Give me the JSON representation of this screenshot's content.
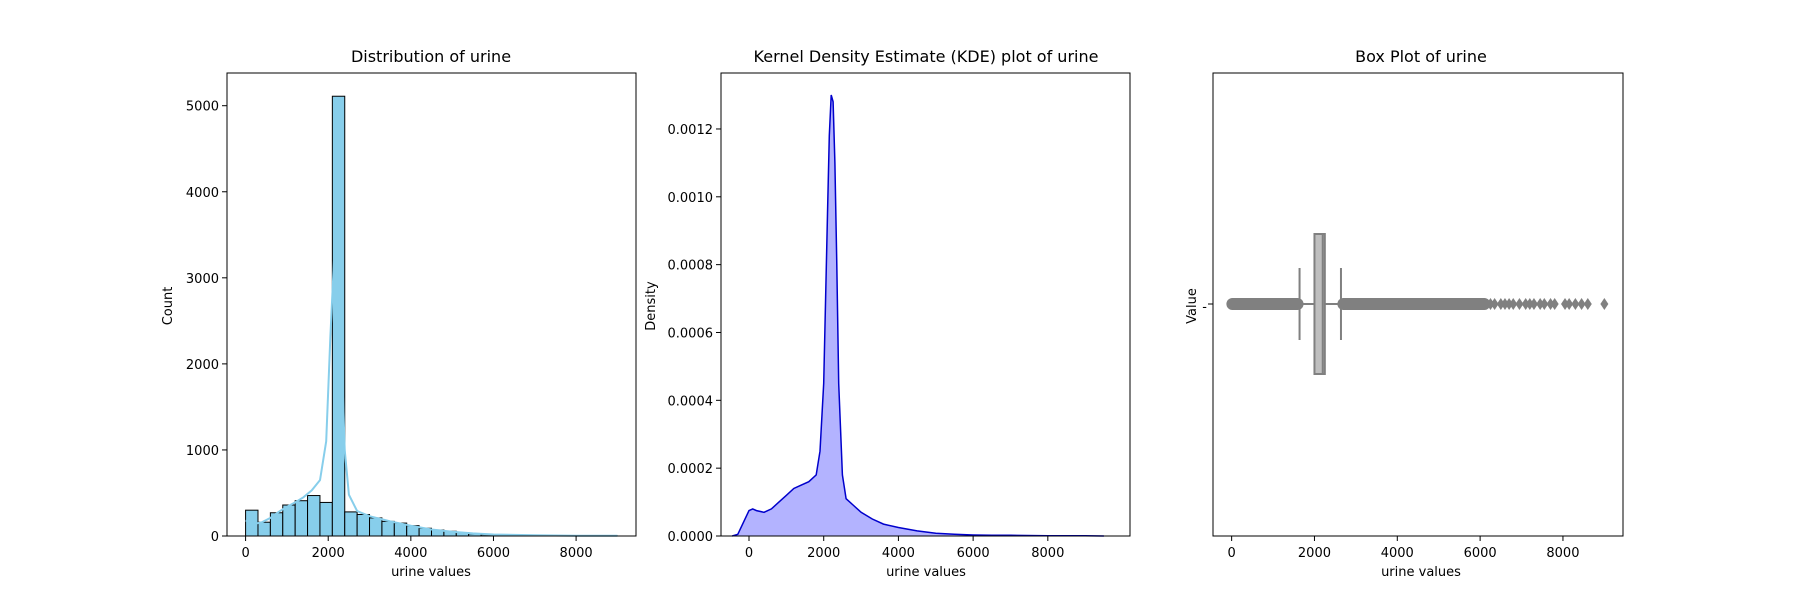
{
  "chart_data": [
    {
      "type": "bar",
      "title": "Distribution of urine",
      "xlabel": "urine values",
      "ylabel": "Count",
      "xlim": [
        -450,
        9450
      ],
      "ylim": [
        0,
        5380
      ],
      "xticks": [
        0,
        2000,
        4000,
        6000,
        8000
      ],
      "yticks": [
        0,
        1000,
        2000,
        3000,
        4000,
        5000
      ],
      "bin_edges": [
        0,
        300,
        600,
        900,
        1200,
        1500,
        1800,
        2100,
        2400,
        2700,
        3000,
        3300,
        3600,
        3900,
        4200,
        4500,
        4800,
        5100,
        5400,
        5700,
        6000,
        6300,
        6600,
        6900,
        7200,
        7500,
        7800,
        8100,
        8400,
        8700,
        9000
      ],
      "values": [
        300,
        160,
        270,
        360,
        410,
        470,
        390,
        5110,
        280,
        250,
        210,
        170,
        150,
        120,
        90,
        70,
        55,
        40,
        25,
        15,
        10,
        8,
        5,
        4,
        3,
        2,
        2,
        1,
        1,
        1
      ],
      "bar_color": "#87ceeb",
      "kde_curve": {
        "color": "#87ceeb",
        "x": [
          0,
          200,
          400,
          600,
          800,
          1000,
          1200,
          1400,
          1600,
          1800,
          1950,
          2050,
          2150,
          2200,
          2250,
          2300,
          2400,
          2500,
          2700,
          3000,
          3500,
          4000,
          4500,
          5000,
          5500,
          6000,
          7000,
          8000,
          9000
        ],
        "y": [
          180,
          140,
          160,
          210,
          280,
          340,
          390,
          450,
          530,
          650,
          1100,
          2300,
          3300,
          3500,
          3300,
          2500,
          1000,
          480,
          290,
          230,
          170,
          120,
          75,
          50,
          30,
          18,
          8,
          4,
          2
        ]
      }
    },
    {
      "type": "area",
      "title": "Kernel Density Estimate (KDE) plot of urine",
      "xlabel": "urine values",
      "ylabel": "Density",
      "xlim": [
        -750,
        10200
      ],
      "ylim": [
        0,
        0.001365
      ],
      "xticks": [
        0,
        2000,
        4000,
        6000,
        8000
      ],
      "yticks": [
        0.0,
        0.0002,
        0.0004,
        0.0006,
        0.0008,
        0.001,
        0.0012
      ],
      "ytick_labels": [
        "0.0000",
        "0.0002",
        "0.0004",
        "0.0006",
        "0.0008",
        "0.0010",
        "0.0012"
      ],
      "line_color": "#0000cc",
      "fill_color": "#b3b3ff",
      "x": [
        -450,
        -300,
        -150,
        0,
        100,
        200,
        400,
        600,
        800,
        1000,
        1200,
        1400,
        1600,
        1800,
        1900,
        2000,
        2050,
        2100,
        2150,
        2200,
        2250,
        2300,
        2350,
        2400,
        2500,
        2600,
        2800,
        3000,
        3300,
        3600,
        4000,
        4500,
        5000,
        5500,
        6000,
        6500,
        7000,
        8000,
        9000,
        9500
      ],
      "y": [
        0.0,
        5e-06,
        4e-05,
        7.5e-05,
        8e-05,
        7.5e-05,
        7e-05,
        8e-05,
        0.0001,
        0.00012,
        0.00014,
        0.00015,
        0.00016,
        0.00018,
        0.00025,
        0.00045,
        0.0007,
        0.00095,
        0.00118,
        0.0013,
        0.00128,
        0.0011,
        0.0008,
        0.00045,
        0.00018,
        0.00011,
        9e-05,
        7e-05,
        5e-05,
        3.5e-05,
        2.5e-05,
        1.5e-05,
        8e-06,
        5e-06,
        3e-06,
        2e-06,
        2e-06,
        1e-06,
        5e-07,
        0.0
      ]
    },
    {
      "type": "box",
      "title": "Box Plot of urine",
      "xlabel": "urine values",
      "ylabel": "Value",
      "xlim": [
        -450,
        9450
      ],
      "xticks": [
        0,
        2000,
        4000,
        6000,
        8000
      ],
      "box_color": "#bfbfbf",
      "line_color": "#808080",
      "q1": 2000,
      "median": 2200,
      "q3": 2250,
      "whisker_low": 1640,
      "whisker_high": 2640,
      "outliers_low_range": [
        -30,
        1640
      ],
      "outliers_high_range": [
        2650,
        6150
      ],
      "outliers_high_sparse": [
        6250,
        6350,
        6500,
        6600,
        6700,
        6800,
        6950,
        7100,
        7200,
        7300,
        7450,
        7550,
        7700,
        7800,
        8050,
        8150,
        8300,
        8450,
        8600,
        9000
      ]
    }
  ]
}
